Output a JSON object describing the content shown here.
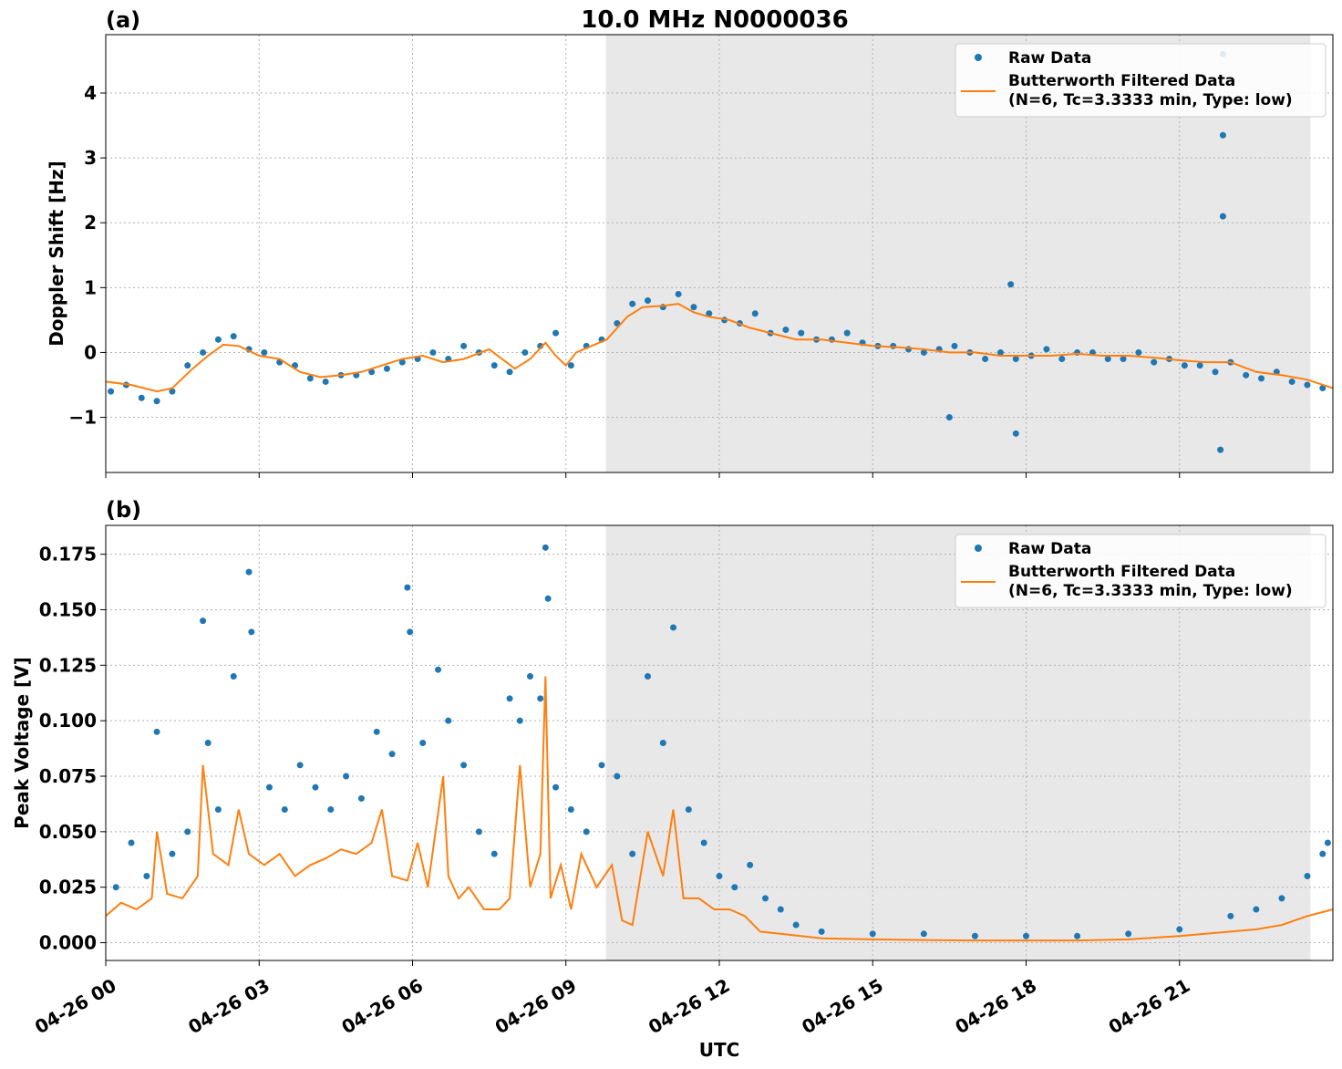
{
  "chart_data": [
    {
      "panel_label": "(a)",
      "title": "10.0 MHz N0000036",
      "type": "scatter",
      "ylabel": "Doppler Shift [Hz]",
      "xlabel": "",
      "xlim_hours": [
        0,
        24
      ],
      "ylim": [
        -1.85,
        4.9
      ],
      "yticks": [
        -1,
        0,
        1,
        2,
        3,
        4
      ],
      "ytick_labels": [
        "−1",
        "0",
        "1",
        "2",
        "3",
        "4"
      ],
      "grid": true,
      "legend_position": "top-right",
      "shaded_region_hours": [
        9.78,
        23.56
      ],
      "legend": [
        "Raw Data",
        "Butterworth Filtered Data",
        "(N=6, Tc=3.3333 min, Type: low)"
      ],
      "series": [
        {
          "name": "Butterworth Filtered Data (N=6, Tc=3.3333 min, Type: low)",
          "kind": "line",
          "x_hours": [
            0,
            0.5,
            1,
            1.3,
            1.7,
            2,
            2.3,
            2.6,
            3,
            3.4,
            3.8,
            4.2,
            4.6,
            5,
            5.4,
            5.8,
            6.2,
            6.6,
            7,
            7.5,
            8,
            8.3,
            8.6,
            8.8,
            9,
            9.2,
            9.5,
            9.8,
            10.2,
            10.5,
            10.9,
            11.2,
            11.5,
            11.8,
            12.2,
            12.6,
            13,
            13.5,
            14,
            14.5,
            15,
            15.5,
            16,
            16.5,
            17,
            17.5,
            18,
            18.5,
            19,
            19.5,
            20,
            20.5,
            21,
            21.5,
            22,
            22.5,
            23,
            23.5,
            24
          ],
          "values": [
            -0.45,
            -0.5,
            -0.6,
            -0.55,
            -0.25,
            -0.05,
            0.12,
            0.1,
            -0.05,
            -0.1,
            -0.3,
            -0.38,
            -0.35,
            -0.3,
            -0.2,
            -0.1,
            -0.05,
            -0.15,
            -0.1,
            0.05,
            -0.25,
            -0.1,
            0.15,
            -0.05,
            -0.2,
            0.0,
            0.1,
            0.2,
            0.55,
            0.7,
            0.72,
            0.75,
            0.62,
            0.55,
            0.5,
            0.38,
            0.3,
            0.2,
            0.2,
            0.15,
            0.1,
            0.08,
            0.05,
            0.0,
            0.0,
            -0.05,
            -0.05,
            -0.05,
            -0.02,
            -0.05,
            -0.05,
            -0.08,
            -0.12,
            -0.15,
            -0.15,
            -0.3,
            -0.35,
            -0.42,
            -0.55
          ]
        },
        {
          "name": "Raw Data",
          "kind": "scatter",
          "x_hours": [
            0.1,
            0.4,
            0.7,
            1.0,
            1.3,
            1.6,
            1.9,
            2.2,
            2.5,
            2.8,
            3.1,
            3.4,
            3.7,
            4.0,
            4.3,
            4.6,
            4.9,
            5.2,
            5.5,
            5.8,
            6.1,
            6.4,
            6.7,
            7.0,
            7.3,
            7.6,
            7.9,
            8.2,
            8.5,
            8.8,
            9.1,
            9.4,
            9.7,
            10.0,
            10.3,
            10.6,
            10.9,
            11.2,
            11.5,
            11.8,
            12.1,
            12.4,
            12.7,
            13.0,
            13.3,
            13.6,
            13.9,
            14.2,
            14.5,
            14.8,
            15.1,
            15.4,
            15.7,
            16.0,
            16.3,
            16.6,
            16.9,
            17.2,
            17.5,
            17.8,
            18.1,
            18.4,
            18.7,
            19.0,
            19.3,
            19.6,
            19.9,
            20.2,
            20.5,
            20.8,
            21.1,
            21.4,
            21.7,
            22.0,
            22.3,
            22.6,
            22.9,
            23.2,
            23.5,
            23.8,
            21.85,
            21.85,
            21.85,
            21.8,
            16.5,
            17.8,
            17.7
          ],
          "values": [
            -0.6,
            -0.5,
            -0.7,
            -0.75,
            -0.6,
            -0.2,
            0.0,
            0.2,
            0.25,
            0.05,
            0.0,
            -0.15,
            -0.2,
            -0.4,
            -0.45,
            -0.35,
            -0.35,
            -0.3,
            -0.25,
            -0.15,
            -0.1,
            0.0,
            -0.1,
            0.1,
            0.0,
            -0.2,
            -0.3,
            0.0,
            0.1,
            0.3,
            -0.2,
            0.1,
            0.2,
            0.45,
            0.75,
            0.8,
            0.7,
            0.9,
            0.7,
            0.6,
            0.5,
            0.45,
            0.6,
            0.3,
            0.35,
            0.3,
            0.2,
            0.2,
            0.3,
            0.15,
            0.1,
            0.1,
            0.05,
            0.0,
            0.05,
            0.1,
            0.0,
            -0.1,
            0.0,
            -0.1,
            -0.05,
            0.05,
            -0.1,
            0.0,
            0.0,
            -0.1,
            -0.1,
            0.0,
            -0.15,
            -0.1,
            -0.2,
            -0.2,
            -0.3,
            -0.15,
            -0.35,
            -0.4,
            -0.3,
            -0.45,
            -0.5,
            -0.55,
            3.35,
            2.1,
            4.6,
            -1.5,
            -1.0,
            -1.25,
            1.05
          ]
        }
      ]
    },
    {
      "panel_label": "(b)",
      "type": "scatter",
      "ylabel": "Peak Voltage [V]",
      "xlabel": "UTC",
      "xlim_hours": [
        0,
        24
      ],
      "xticks_hours": [
        0,
        3,
        6,
        9,
        12,
        15,
        18,
        21
      ],
      "xtick_labels": [
        "04-26 00",
        "04-26 03",
        "04-26 06",
        "04-26 09",
        "04-26 12",
        "04-26 15",
        "04-26 18",
        "04-26 21"
      ],
      "ylim": [
        -0.008,
        0.188
      ],
      "yticks": [
        0.0,
        0.025,
        0.05,
        0.075,
        0.1,
        0.125,
        0.15,
        0.175
      ],
      "ytick_labels": [
        "0.000",
        "0.025",
        "0.050",
        "0.075",
        "0.100",
        "0.125",
        "0.150",
        "0.175"
      ],
      "grid": true,
      "legend_position": "top-right",
      "shaded_region_hours": [
        9.78,
        23.56
      ],
      "legend": [
        "Raw Data",
        "Butterworth Filtered Data",
        "(N=6, Tc=3.3333 min, Type: low)"
      ],
      "series": [
        {
          "name": "Butterworth Filtered Data (N=6, Tc=3.3333 min, Type: low)",
          "kind": "line",
          "x_hours": [
            0,
            0.3,
            0.6,
            0.9,
            1.0,
            1.2,
            1.5,
            1.8,
            1.9,
            2.1,
            2.4,
            2.6,
            2.8,
            3.1,
            3.4,
            3.7,
            4.0,
            4.3,
            4.6,
            4.9,
            5.2,
            5.4,
            5.6,
            5.9,
            6.1,
            6.3,
            6.6,
            6.7,
            6.9,
            7.1,
            7.4,
            7.7,
            7.9,
            8.1,
            8.3,
            8.5,
            8.6,
            8.7,
            8.9,
            9.1,
            9.3,
            9.6,
            9.9,
            10.1,
            10.3,
            10.6,
            10.9,
            11.1,
            11.3,
            11.6,
            11.9,
            12.2,
            12.5,
            12.8,
            13.2,
            13.6,
            14,
            15,
            16,
            17,
            18,
            19,
            20,
            21,
            21.5,
            22,
            22.5,
            23,
            23.5,
            24
          ],
          "values": [
            0.012,
            0.018,
            0.015,
            0.02,
            0.05,
            0.022,
            0.02,
            0.03,
            0.08,
            0.04,
            0.035,
            0.06,
            0.04,
            0.035,
            0.04,
            0.03,
            0.035,
            0.038,
            0.042,
            0.04,
            0.045,
            0.06,
            0.03,
            0.028,
            0.045,
            0.025,
            0.075,
            0.03,
            0.02,
            0.025,
            0.015,
            0.015,
            0.02,
            0.08,
            0.025,
            0.04,
            0.12,
            0.02,
            0.035,
            0.015,
            0.04,
            0.025,
            0.035,
            0.01,
            0.008,
            0.05,
            0.03,
            0.06,
            0.02,
            0.02,
            0.015,
            0.015,
            0.012,
            0.005,
            0.004,
            0.003,
            0.002,
            0.0015,
            0.0012,
            0.001,
            0.001,
            0.001,
            0.0015,
            0.003,
            0.004,
            0.005,
            0.006,
            0.008,
            0.012,
            0.015
          ]
        },
        {
          "name": "Raw Data",
          "kind": "scatter",
          "x_hours": [
            0.2,
            0.5,
            0.8,
            1.0,
            1.3,
            1.6,
            1.9,
            2.0,
            2.2,
            2.5,
            2.8,
            2.85,
            3.2,
            3.5,
            3.8,
            4.1,
            4.4,
            4.7,
            5.0,
            5.3,
            5.6,
            5.9,
            5.95,
            6.2,
            6.5,
            6.7,
            7.0,
            7.3,
            7.6,
            7.9,
            8.1,
            8.3,
            8.5,
            8.6,
            8.65,
            8.8,
            9.1,
            9.4,
            9.7,
            10.0,
            10.3,
            10.6,
            10.9,
            11.1,
            11.4,
            11.7,
            12.0,
            12.3,
            12.6,
            12.9,
            13.2,
            13.5,
            14,
            15,
            16,
            17,
            18,
            19,
            20,
            21,
            22,
            22.5,
            23,
            23.5,
            23.8,
            23.9
          ],
          "values": [
            0.025,
            0.045,
            0.03,
            0.095,
            0.04,
            0.05,
            0.145,
            0.09,
            0.06,
            0.12,
            0.167,
            0.14,
            0.07,
            0.06,
            0.08,
            0.07,
            0.06,
            0.075,
            0.065,
            0.095,
            0.085,
            0.16,
            0.14,
            0.09,
            0.123,
            0.1,
            0.08,
            0.05,
            0.04,
            0.11,
            0.1,
            0.12,
            0.11,
            0.178,
            0.155,
            0.07,
            0.06,
            0.05,
            0.08,
            0.075,
            0.04,
            0.12,
            0.09,
            0.142,
            0.06,
            0.045,
            0.03,
            0.025,
            0.035,
            0.02,
            0.015,
            0.008,
            0.005,
            0.004,
            0.004,
            0.003,
            0.003,
            0.003,
            0.004,
            0.006,
            0.012,
            0.015,
            0.02,
            0.03,
            0.04,
            0.045
          ]
        }
      ]
    }
  ],
  "colors": {
    "raw": "#1f77b4",
    "filtered": "#ff7f0e",
    "shade": "#e8e8e8",
    "grid": "#b0b0b0"
  }
}
